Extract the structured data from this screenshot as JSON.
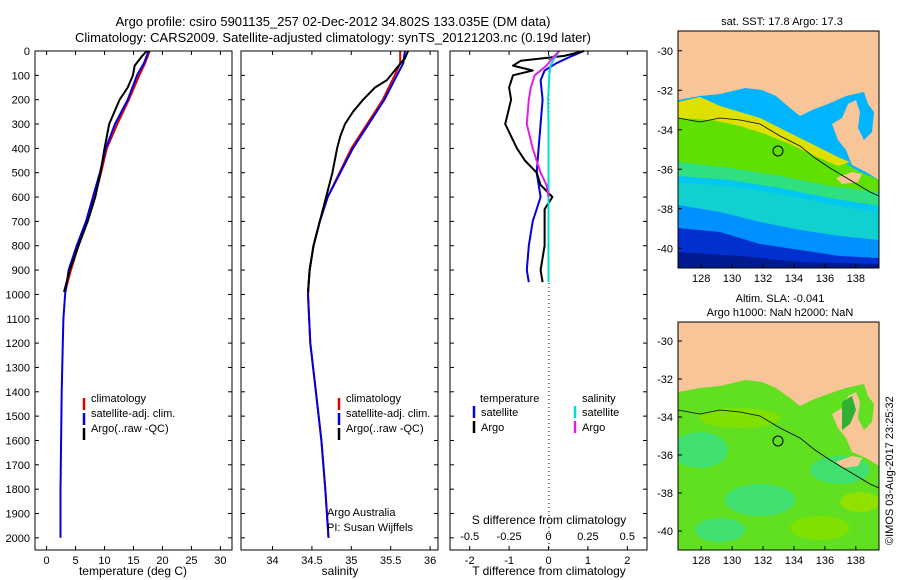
{
  "title": {
    "line1": "Argo profile: csiro 5901135_257 02-Dec-2012 34.802S 133.035E (DM data)",
    "line2": "Climatology: CARS2009. Satellite-adjusted climatology: synTS_20121203.nc (0.19d later)"
  },
  "credit": "Argo Australia",
  "pi": "PI: Susan Wijffels",
  "side_stamp": "©IMOS 03-Aug-2017 23:25:32",
  "chart_data": [
    {
      "id": "temperature",
      "type": "line",
      "xlabel": "temperature (deg C)",
      "ylabel": "",
      "xlim": [
        -2,
        32
      ],
      "ylim": [
        2050,
        0
      ],
      "xticks": [
        0,
        5,
        10,
        15,
        20,
        25,
        30
      ],
      "yticks": [
        0,
        100,
        200,
        300,
        400,
        500,
        600,
        700,
        800,
        900,
        1000,
        1100,
        1200,
        1300,
        1400,
        1500,
        1600,
        1700,
        1800,
        1900,
        2000
      ],
      "legend": [
        "climatology",
        "satellite-adj. clim.",
        "Argo(..raw -QC)"
      ],
      "legend_position": "lower-right",
      "series": [
        {
          "name": "climatology",
          "color": "#e00000",
          "depth": [
            0,
            50,
            100,
            200,
            300,
            400,
            500,
            600,
            700,
            800,
            900,
            990
          ],
          "x": [
            17.8,
            17.0,
            16.0,
            14.2,
            12.2,
            10.4,
            9.4,
            8.3,
            7.0,
            5.5,
            4.2,
            3.2
          ]
        },
        {
          "name": "satellite-adj. clim.",
          "color": "#0000e0",
          "depth": [
            0,
            50,
            100,
            200,
            300,
            400,
            500,
            600,
            700,
            800,
            900,
            1000,
            1100,
            1200,
            1400,
            1600,
            1800,
            2000
          ],
          "x": [
            17.6,
            16.8,
            15.6,
            14.0,
            11.8,
            10.2,
            9.2,
            8.0,
            6.8,
            5.2,
            3.8,
            3.2,
            2.9,
            2.8,
            2.6,
            2.5,
            2.4,
            2.4
          ]
        },
        {
          "name": "Argo(..raw -QC)",
          "color": "#000000",
          "depth": [
            0,
            20,
            60,
            100,
            150,
            200,
            300,
            400,
            500,
            600,
            700,
            800,
            900,
            990
          ],
          "x": [
            17.3,
            16.5,
            15.2,
            14.9,
            14.0,
            12.6,
            10.8,
            10.0,
            9.3,
            8.4,
            7.1,
            5.5,
            4.0,
            3.0
          ]
        }
      ]
    },
    {
      "id": "salinity",
      "type": "line",
      "xlabel": "salinity",
      "ylabel": "",
      "xlim": [
        33.6,
        36.1
      ],
      "ylim": [
        2050,
        0
      ],
      "xticks": [
        34,
        34.5,
        35,
        35.5,
        36
      ],
      "legend": [
        "climatology",
        "satellite-adj. clim.",
        "Argo(..raw -QC)"
      ],
      "legend_position": "lower-right",
      "series": [
        {
          "name": "climatology",
          "color": "#e00000",
          "depth": [
            0,
            50,
            100,
            200,
            300,
            400,
            500,
            600,
            700,
            800,
            900,
            1000,
            1200,
            1400,
            1600,
            1800,
            2000
          ],
          "x": [
            35.62,
            35.62,
            35.55,
            35.4,
            35.2,
            35.0,
            34.85,
            34.7,
            34.6,
            34.52,
            34.47,
            34.45,
            34.48,
            34.55,
            34.62,
            34.67,
            34.71
          ]
        },
        {
          "name": "satellite-adj. clim.",
          "color": "#0000e0",
          "depth": [
            0,
            50,
            100,
            200,
            300,
            400,
            500,
            600,
            700,
            800,
            900,
            1000,
            1200,
            1400,
            1600,
            1800,
            2000
          ],
          "x": [
            35.68,
            35.66,
            35.58,
            35.42,
            35.22,
            35.02,
            34.86,
            34.7,
            34.6,
            34.52,
            34.47,
            34.45,
            34.48,
            34.55,
            34.62,
            34.67,
            34.71
          ]
        },
        {
          "name": "Argo(..raw -QC)",
          "color": "#000000",
          "depth": [
            0,
            30,
            80,
            120,
            150,
            200,
            250,
            300,
            350,
            400,
            500,
            600,
            700,
            800,
            900,
            990
          ],
          "x": [
            35.72,
            35.68,
            35.55,
            35.45,
            35.3,
            35.15,
            35.02,
            34.92,
            34.86,
            34.82,
            34.76,
            34.68,
            34.6,
            34.52,
            34.47,
            34.45
          ]
        }
      ]
    },
    {
      "id": "difference",
      "type": "line",
      "xlabel": "T difference from climatology",
      "xlabel_top": "S difference from climatology",
      "xlim": [
        -2.5,
        2.5
      ],
      "ylim": [
        2050,
        0
      ],
      "xticks": [
        -2,
        -1,
        0,
        1,
        2
      ],
      "xticks_top": [
        "-0.5",
        "-0.25",
        "0",
        "0.25",
        "0.5"
      ],
      "legend_titles": [
        "temperature",
        "salinity"
      ],
      "legend": [
        "satellite",
        "Argo",
        "satellite",
        "Argo"
      ],
      "legend_position": "lower-center",
      "series": [
        {
          "name": "satellite",
          "group": "temperature",
          "color": "#0000e0",
          "depth": [
            0,
            20,
            50,
            80,
            120,
            200,
            300,
            400,
            500,
            600,
            700,
            800,
            900,
            950
          ],
          "x": [
            0.9,
            0.6,
            0.2,
            -0.1,
            -0.2,
            -0.15,
            -0.2,
            -0.25,
            -0.3,
            -0.2,
            -0.4,
            -0.5,
            -0.55,
            -0.5
          ]
        },
        {
          "name": "Argo",
          "group": "temperature",
          "color": "#000000",
          "depth": [
            0,
            20,
            40,
            60,
            80,
            100,
            150,
            200,
            300,
            400,
            450,
            500,
            550,
            600,
            650,
            700,
            800,
            900,
            950
          ],
          "x": [
            0.9,
            0.4,
            -0.7,
            -0.9,
            -0.4,
            -0.9,
            -1.0,
            -0.95,
            -1.1,
            -0.8,
            -0.6,
            -0.3,
            -0.2,
            0.1,
            -0.1,
            -0.1,
            -0.1,
            -0.2,
            -0.15
          ]
        },
        {
          "name": "satellite",
          "group": "salinity",
          "color": "#00dddd",
          "depth": [
            0,
            30,
            60,
            100,
            200,
            300,
            400,
            500,
            600,
            700,
            800,
            900,
            950
          ],
          "x": [
            0.27,
            0.15,
            0.05,
            0.02,
            -0.01,
            0.0,
            0.0,
            0.0,
            0.0,
            0.0,
            0.0,
            0.0,
            0.0
          ]
        },
        {
          "name": "Argo",
          "group": "salinity",
          "color": "#e020e0",
          "depth": [
            0,
            30,
            60,
            100,
            150,
            200,
            300,
            400,
            500,
            550,
            600
          ],
          "x": [
            0.27,
            0.1,
            -0.05,
            -0.35,
            -0.45,
            -0.5,
            -0.55,
            -0.4,
            -0.2,
            -0.05,
            0.0
          ]
        }
      ]
    },
    {
      "id": "map-sst",
      "type": "heatmap",
      "title": "sat. SST: 17.8  Argo: 17.3",
      "xlim": [
        126.5,
        139.5
      ],
      "ylim": [
        -41,
        -29
      ],
      "xticks": [
        128,
        130,
        132,
        134,
        136,
        138
      ],
      "yticks": [
        -30,
        -32,
        -34,
        -36,
        -38,
        -40
      ],
      "marker": {
        "lon": 133.035,
        "lat": -34.802
      }
    },
    {
      "id": "map-sla",
      "type": "heatmap",
      "title": "Altim. SLA: -0.041",
      "subtitle": "Argo h1000: NaN  h2000: NaN",
      "xlim": [
        126.5,
        139.5
      ],
      "ylim": [
        -41,
        -29
      ],
      "xticks": [
        128,
        130,
        132,
        134,
        136,
        138
      ],
      "yticks": [
        -30,
        -32,
        -34,
        -36,
        -38,
        -40
      ],
      "marker": {
        "lon": 133.035,
        "lat": -34.802
      }
    }
  ]
}
